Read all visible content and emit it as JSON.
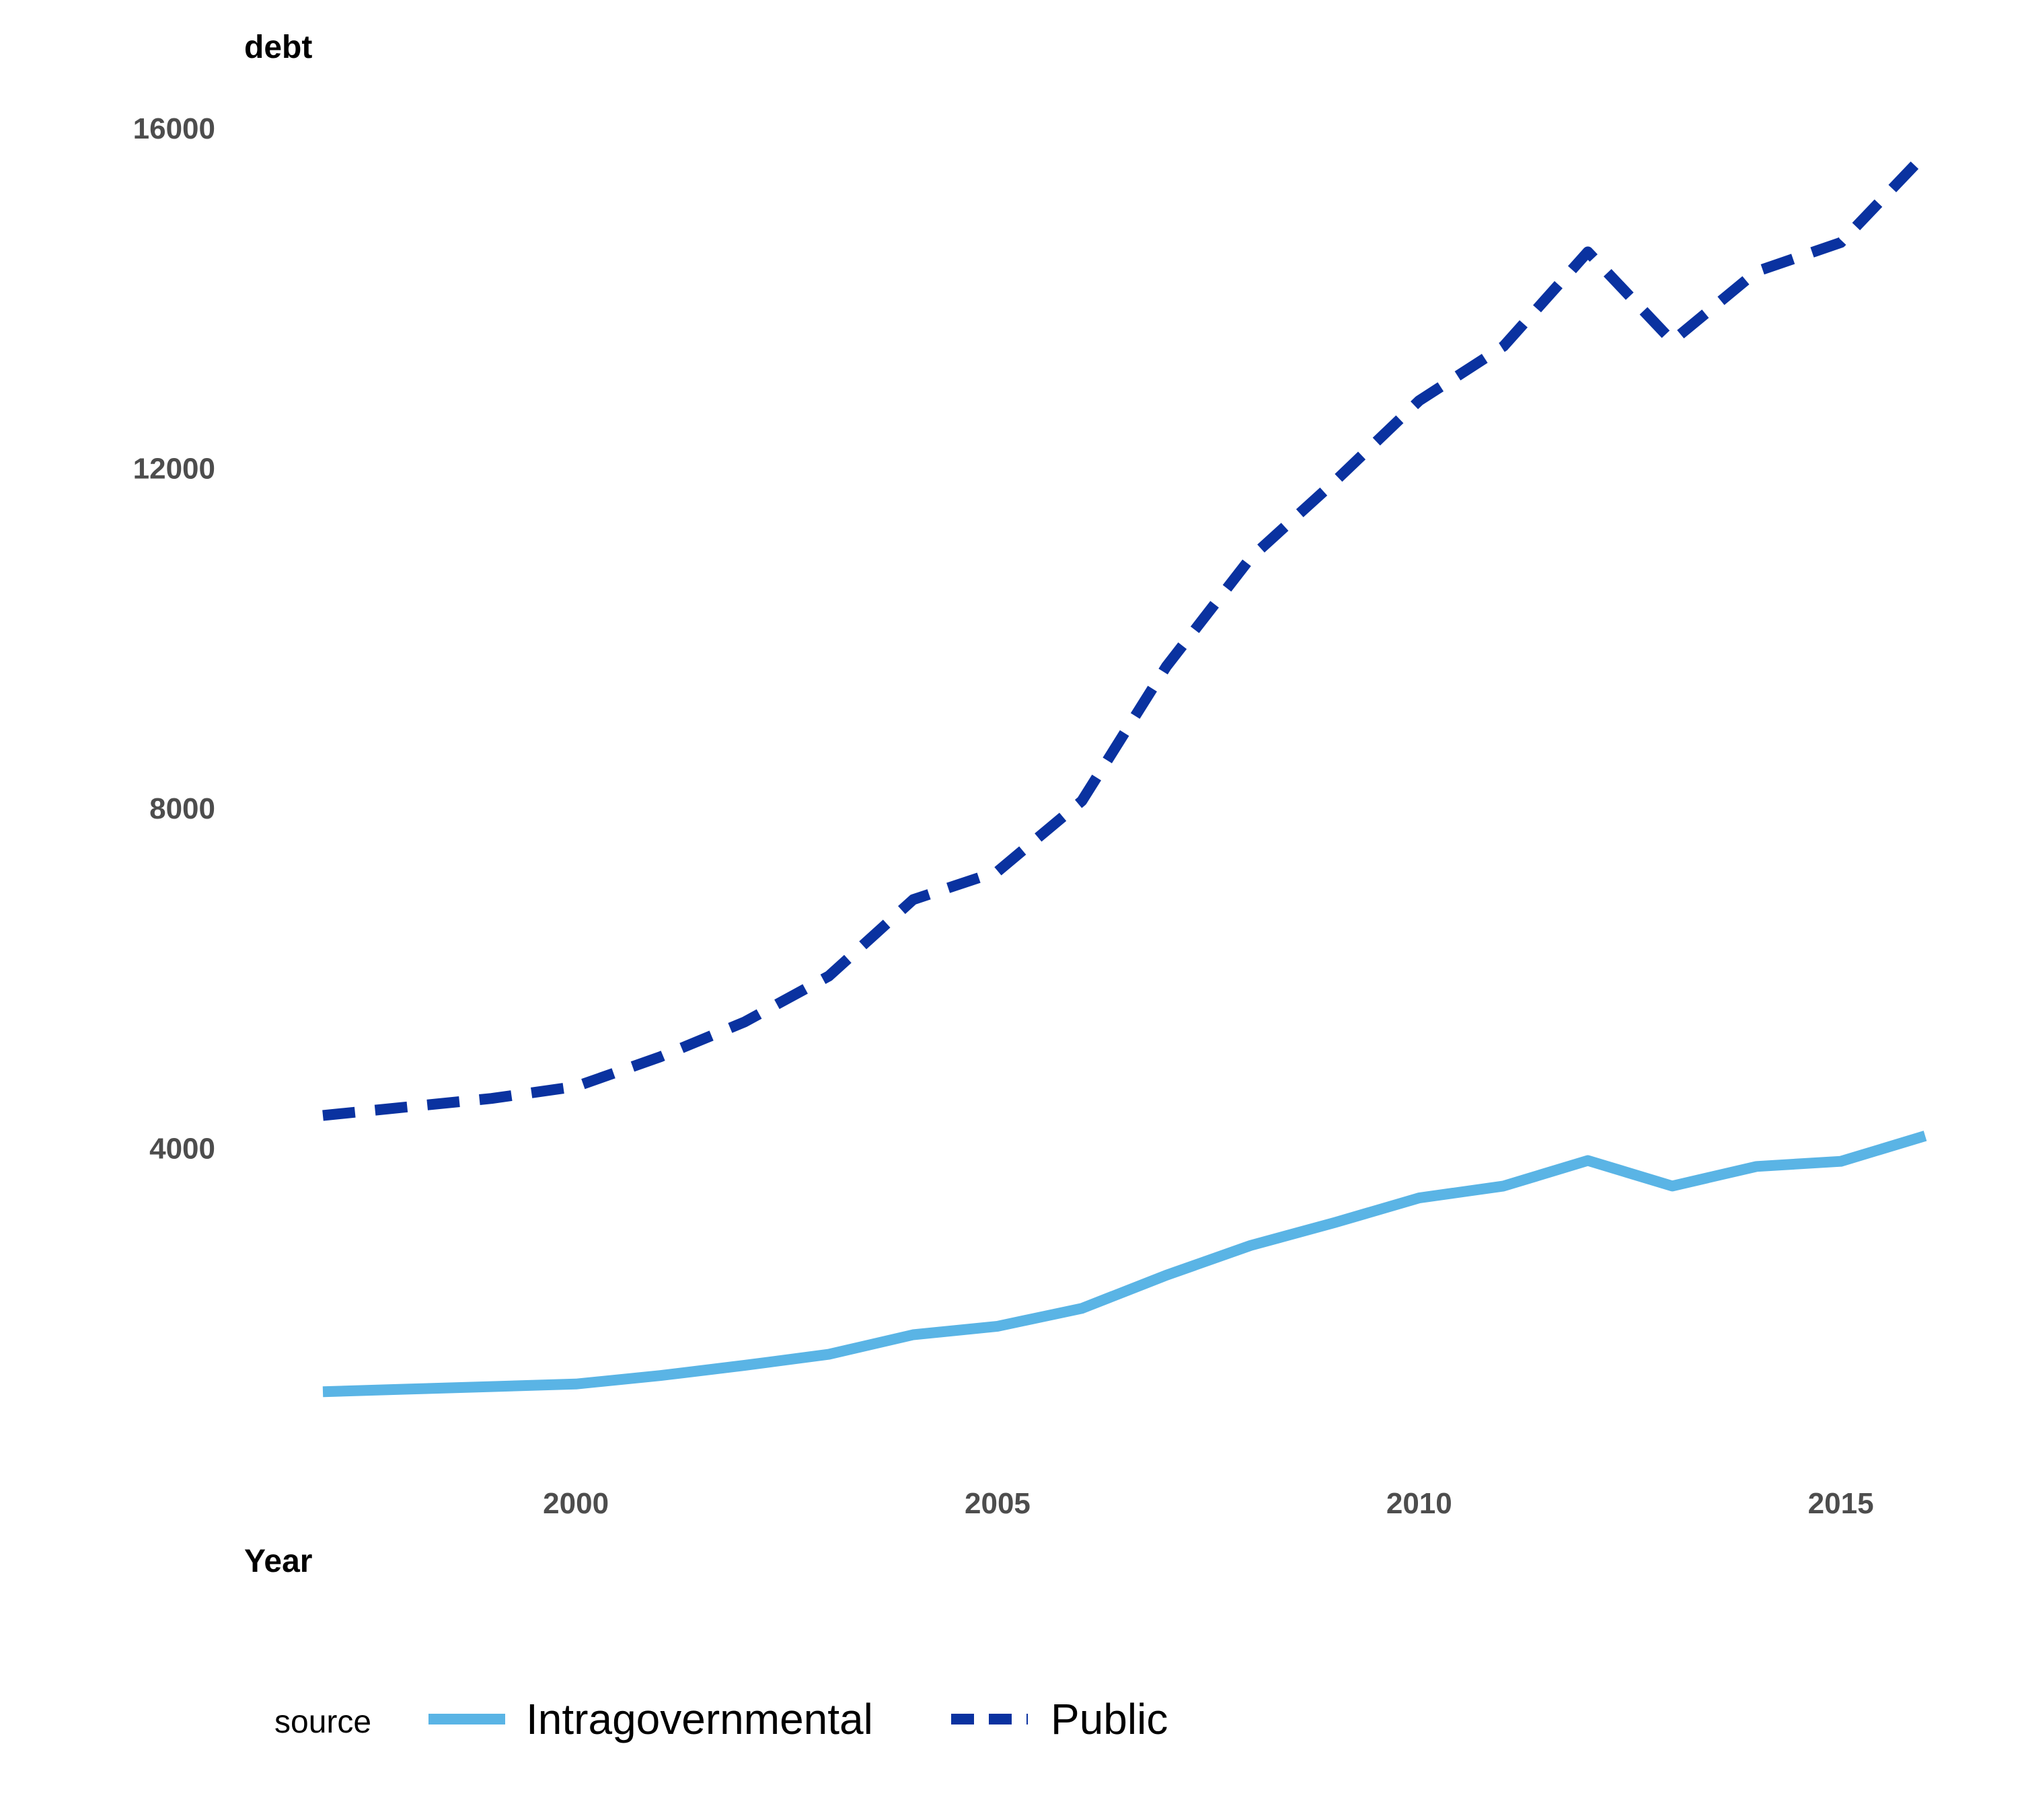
{
  "chart_data": {
    "type": "line",
    "title": "",
    "xlabel": "Year",
    "ylabel": "debt",
    "xlim": [
      1997,
      2016
    ],
    "ylim": [
      0,
      16000
    ],
    "x_ticks": [
      2000,
      2005,
      2010,
      2015
    ],
    "y_ticks": [
      4000,
      8000,
      12000,
      16000
    ],
    "x_tick_labels": [
      "2000",
      "2005",
      "2010",
      "2015"
    ],
    "y_tick_labels": [
      "4000",
      "8000",
      "12000",
      "16000"
    ],
    "grid": false,
    "legend": {
      "title": "source",
      "position": "bottom",
      "entries": [
        "Intragovernmental",
        "Public"
      ]
    },
    "x": [
      1997,
      1998,
      1999,
      2000,
      2001,
      2002,
      2003,
      2004,
      2005,
      2006,
      2007,
      2008,
      2009,
      2010,
      2011,
      2012,
      2013,
      2014,
      2015,
      2016
    ],
    "series": [
      {
        "name": "Intragovernmental",
        "color": "#5ab4e5",
        "dash": "solid",
        "values": [
          1130,
          1160,
          1190,
          1220,
          1320,
          1440,
          1570,
          1800,
          1900,
          2110,
          2500,
          2850,
          3120,
          3410,
          3550,
          3850,
          3550,
          3780,
          3840,
          4140
        ]
      },
      {
        "name": "Public",
        "color": "#0a32a0",
        "dash": "dashed",
        "values": [
          4380,
          4480,
          4580,
          4720,
          5070,
          5480,
          6020,
          6920,
          7250,
          8080,
          9660,
          10940,
          11840,
          12790,
          13430,
          14540,
          13490,
          14310,
          14650,
          15690
        ]
      }
    ]
  }
}
